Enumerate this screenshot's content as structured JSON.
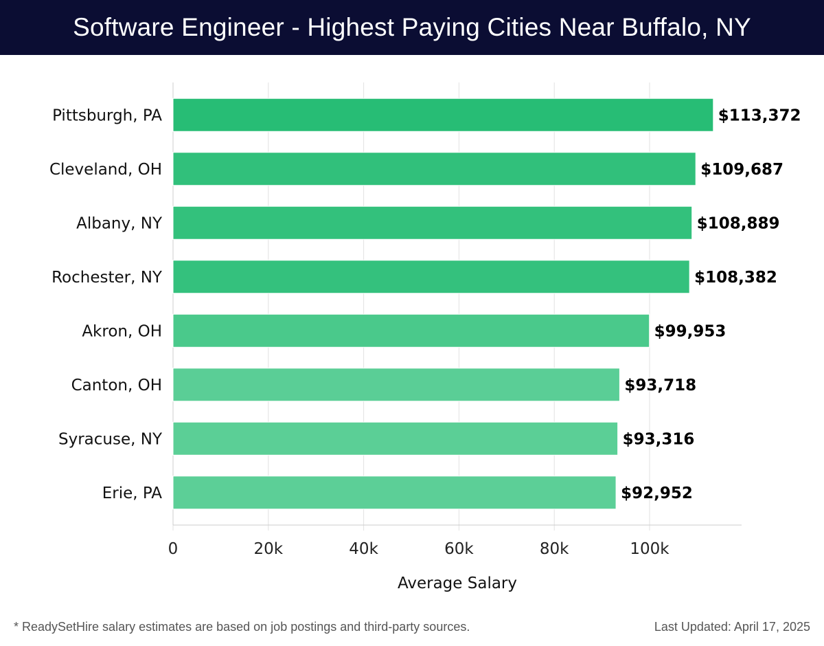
{
  "header": {
    "title": "Software Engineer - Highest Paying Cities Near Buffalo, NY"
  },
  "footer": {
    "note": "* ReadySetHire salary estimates are based on job postings and third-party sources.",
    "updated": "Last Updated: April 17, 2025"
  },
  "chart_data": {
    "type": "bar",
    "orientation": "horizontal",
    "title": "Software Engineer - Highest Paying Cities Near Buffalo, NY",
    "xlabel": "Average Salary",
    "ylabel": "",
    "categories": [
      "Pittsburgh, PA",
      "Cleveland, OH",
      "Albany, NY",
      "Rochester, NY",
      "Akron, OH",
      "Canton, OH",
      "Syracuse, NY",
      "Erie, PA"
    ],
    "values": [
      113372,
      109687,
      108889,
      108382,
      99953,
      93718,
      93316,
      92952
    ],
    "value_labels": [
      "$113,372",
      "$109,687",
      "$108,889",
      "$108,382",
      "$99,953",
      "$93,718",
      "$93,316",
      "$92,952"
    ],
    "xlim": [
      0,
      119000
    ],
    "xticks": [
      0,
      20000,
      40000,
      60000,
      80000,
      100000
    ],
    "xtick_labels": [
      "0",
      "20k",
      "40k",
      "60k",
      "80k",
      "100k"
    ],
    "grid": "vertical",
    "colors": {
      "bar_high": "#27bd75",
      "bar_low": "#5ccf97",
      "grid": "#e2e2e2",
      "axis": "#cccccc"
    }
  }
}
